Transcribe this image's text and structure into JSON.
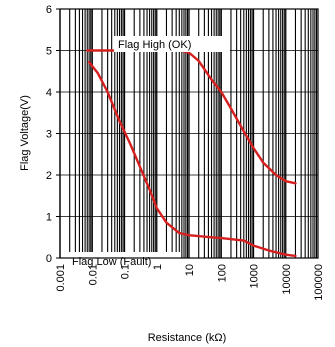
{
  "chart_data": {
    "type": "line",
    "title": "",
    "xlabel": "Resistance (kΩ)",
    "ylabel": "Flag Voltage(V)",
    "xscale": "log",
    "xlim": [
      0.001,
      100000
    ],
    "ylim": [
      0,
      6
    ],
    "x_tick_labels": [
      "0.001",
      "0.01",
      "0.1",
      "1",
      "10",
      "100",
      "1000",
      "10000",
      "100000"
    ],
    "y_tick_labels": [
      "0",
      "1",
      "2",
      "3",
      "4",
      "5",
      "6"
    ],
    "grid": true,
    "annotations": [
      "Flag High (OK)",
      "Flag Low (Fault)"
    ],
    "colors": {
      "line": "#d62020",
      "grid": "#000000",
      "background": "#ffffff"
    },
    "series": [
      {
        "name": "Flag High (OK)",
        "x": [
          0.007,
          0.02,
          0.1,
          1,
          5,
          10,
          20,
          50,
          100,
          200,
          500,
          1000,
          2000,
          5000,
          10000,
          20000
        ],
        "y": [
          5.0,
          5.0,
          5.0,
          5.0,
          5.0,
          4.95,
          4.75,
          4.3,
          4.0,
          3.6,
          3.05,
          2.65,
          2.3,
          2.0,
          1.85,
          1.8
        ]
      },
      {
        "name": "Flag Low (Fault)",
        "x": [
          0.008,
          0.015,
          0.03,
          0.07,
          0.15,
          0.3,
          0.6,
          1,
          2,
          5,
          10,
          50,
          100,
          500,
          1000,
          3000,
          10000,
          20000
        ],
        "y": [
          4.72,
          4.45,
          4.0,
          3.3,
          2.75,
          2.2,
          1.65,
          1.2,
          0.85,
          0.6,
          0.55,
          0.5,
          0.48,
          0.42,
          0.3,
          0.18,
          0.08,
          0.05
        ]
      }
    ]
  }
}
